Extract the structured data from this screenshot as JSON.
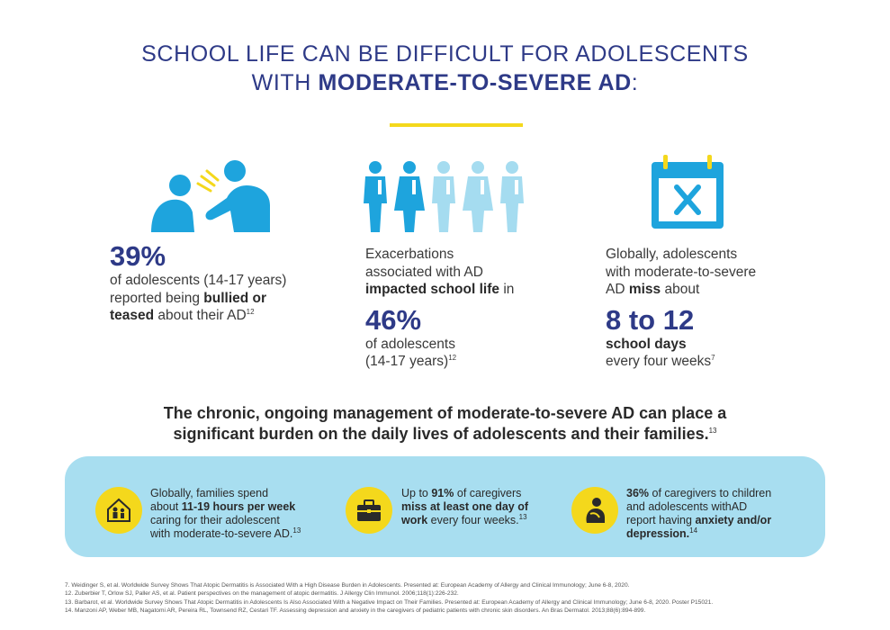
{
  "header": {
    "title_line1": "SCHOOL LIFE CAN BE DIFFICULT FOR ADOLESCENTS",
    "title_line2_prefix": "WITH ",
    "title_line2_bold": "MODERATE-TO-SEVERE AD",
    "title_line2_suffix": ":"
  },
  "stats": [
    {
      "icon": "bullying-icon",
      "value": "39%",
      "line1": "of adolescents (14-17 years)",
      "line2_prefix": "reported being ",
      "line2_bold": "bullied or",
      "line3_bold": "teased",
      "line3_suffix": " about their AD",
      "ref": "12"
    },
    {
      "icon": "students-group-icon",
      "line1": "Exacerbations",
      "line2": "associated with AD",
      "line3_bold": "impacted school life",
      "line3_suffix": " in",
      "value": "46%",
      "line4": "of adolescents",
      "line5": "(14-17 years)",
      "ref": "12"
    },
    {
      "icon": "calendar-missed-icon",
      "line1": "Globally, adolescents",
      "line2": "with moderate-to-severe",
      "line3_prefix": "AD ",
      "line3_bold": "miss",
      "line3_suffix": " about",
      "value": "8 to 12",
      "line4_bold": "school days",
      "line5": "every four weeks",
      "ref": "7"
    }
  ],
  "summary": {
    "line1": "The chronic, ongoing management of moderate-to-severe AD can place a",
    "line2": "significant burden on the daily lives of adolescents and their families.",
    "ref": "13"
  },
  "panel": {
    "items": [
      {
        "icon": "family-home-icon",
        "line1": "Globally, families spend",
        "line2_prefix": "about ",
        "line2_bold": "11-19 hours per week",
        "line3": "caring for their adolescent",
        "line4": "with moderate-to-severe AD.",
        "ref": "13"
      },
      {
        "icon": "briefcase-icon",
        "line1_prefix": "Up to ",
        "line1_bold": "91%",
        "line1_suffix": " of caregivers",
        "line2_bold": "miss at least one day of",
        "line3_bold": "work",
        "line3_suffix": " every four weeks.",
        "ref": "13"
      },
      {
        "icon": "distressed-person-icon",
        "line1_bold": "36%",
        "line1_suffix": " of caregivers to children",
        "line2": "and adolescents withAD",
        "line3_prefix": "report having ",
        "line3_bold": "anxiety and/or",
        "line4_bold": "depression.",
        "ref": "14"
      }
    ]
  },
  "references": [
    "7.  Weidinger S, et al. Worldwide Survey Shows That Atopic Dermatitis is Associated With a High Disease Burden in Adolescents. Presented at: European Academy of Allergy and Clinical Immunology; June 6-8, 2020.",
    "12.  Zuberbier T, Orlow SJ, Paller AS, et al. Patient perspectives on the management of atopic dermatitis. J Allergy Clin Immunol. 2006;118(1):226-232.",
    "13. Barbarot, et al. Worldwide Survey Shows That Atopic Dermatitis in Adolescents Is Also Associated With a Negative Impact on Their Families. Presented at: European Academy of Allergy and Clinical Immunology; June 6-8, 2020. Poster P15021.",
    "14. Manzoni AP, Weber MB, Nagatomi AR, Pereira RL, Townsend RZ, Cestari TF. Assessing depression and anxiety in the caregivers of pediatric patients with chronic skin disorders. An Bras Dermatol. 2013;88(6):894-899."
  ],
  "colors": {
    "navy": "#2e3a87",
    "accent_yellow": "#f4d81c",
    "icon_blue": "#1ea4dd",
    "icon_light_blue": "#a5dcf0",
    "panel_bg": "#a8def0"
  }
}
